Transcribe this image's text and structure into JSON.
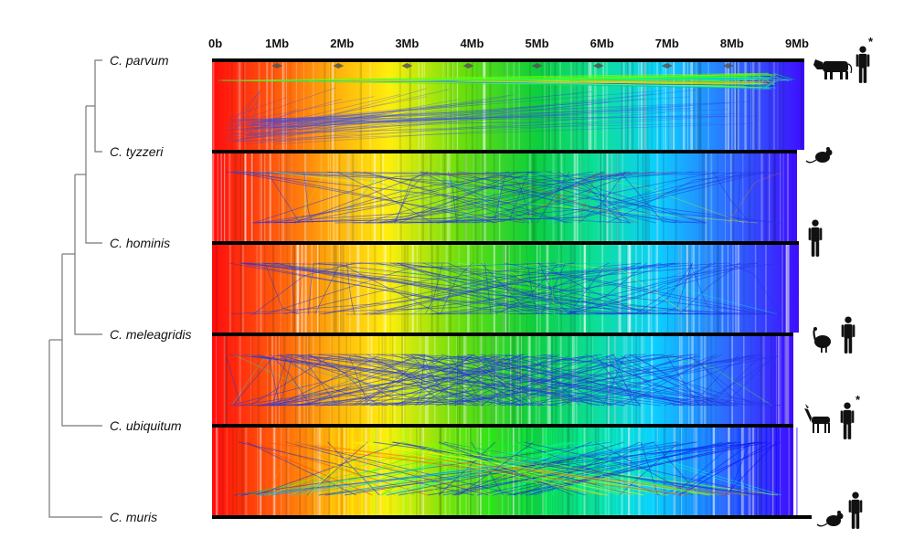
{
  "axis": {
    "ticks": [
      "0b",
      "1Mb",
      "2Mb",
      "3Mb",
      "4Mb",
      "5Mb",
      "6Mb",
      "7Mb",
      "8Mb",
      "9Mb"
    ],
    "max_mb": 9
  },
  "species": [
    {
      "label": "C. parvum",
      "hosts": [
        "cattle-icon",
        "human-icon"
      ],
      "asterisk": "*"
    },
    {
      "label": "C. tyzzeri",
      "hosts": [
        "mouse-icon"
      ],
      "asterisk": ""
    },
    {
      "label": "C. hominis",
      "hosts": [
        "human-icon"
      ],
      "asterisk": ""
    },
    {
      "label": "C. meleagridis",
      "hosts": [
        "turkey-icon",
        "human-icon"
      ],
      "asterisk": ""
    },
    {
      "label": "C. ubiquitum",
      "hosts": [
        "deer-icon",
        "human-icon"
      ],
      "asterisk": "*"
    },
    {
      "label": "C. muris",
      "hosts": [
        "mouse-icon",
        "human-icon"
      ],
      "asterisk": ""
    }
  ],
  "colors": {
    "genome_bar": "#000000",
    "tree_line": "#777777",
    "spectrum_start": "#ff0000",
    "spectrum_end": "#3300ff"
  }
}
